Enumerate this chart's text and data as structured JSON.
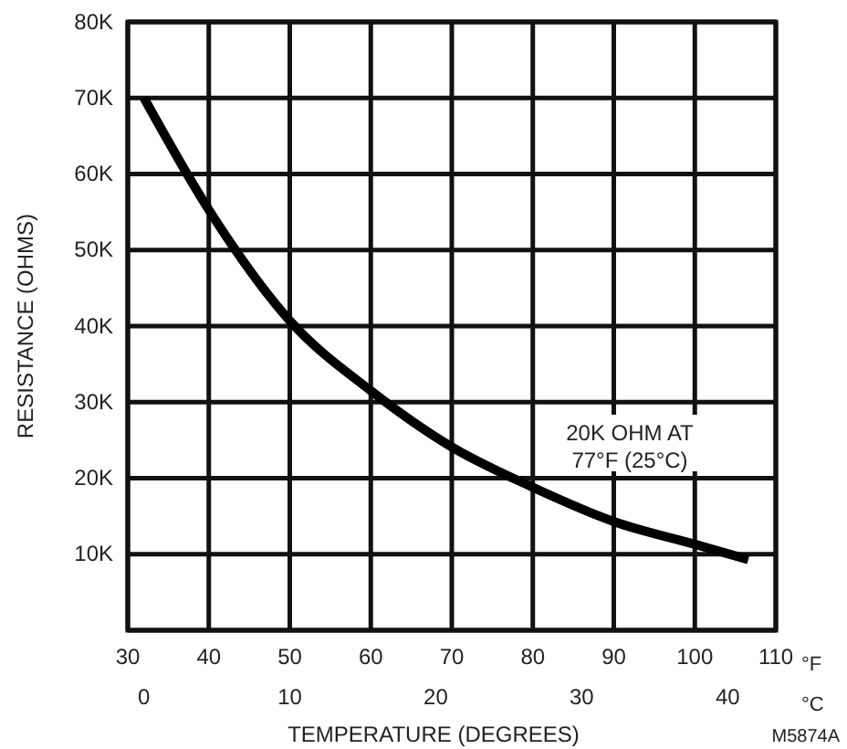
{
  "chart_data": {
    "type": "line",
    "xlabel": "TEMPERATURE (DEGREES)",
    "ylabel": "RESISTANCE (OHMS)",
    "x": [
      32,
      40,
      50,
      60,
      70,
      80,
      90,
      100,
      106.6
    ],
    "series": [
      {
        "color": "#000000",
        "values": [
          70000,
          55300,
          40700,
          31500,
          24100,
          18800,
          14300,
          11300,
          9300
        ]
      }
    ],
    "xlim": [
      30,
      110
    ],
    "xticks": [
      30,
      40,
      50,
      60,
      70,
      80,
      90,
      100,
      110
    ],
    "x2lim": [
      -1.1,
      43.3
    ],
    "x2ticks": [
      0,
      10,
      20,
      30,
      40
    ],
    "ylim": [
      0,
      80000
    ],
    "yticks": [
      {
        "value": 0,
        "label": null
      },
      {
        "value": 10000,
        "label": "10K"
      },
      {
        "value": 20000,
        "label": "20K"
      },
      {
        "value": 30000,
        "label": "30K"
      },
      {
        "value": 40000,
        "label": "40K"
      },
      {
        "value": 50000,
        "label": "50K"
      },
      {
        "value": 60000,
        "label": "60K"
      },
      {
        "value": 70000,
        "label": "70K"
      },
      {
        "value": 80000,
        "label": "80K"
      }
    ],
    "grid": true,
    "marker": "none",
    "line_style": "solid",
    "annotations": [
      "20K OHM AT 77°F (25°C)",
      "°F",
      "°C",
      "M5874A"
    ]
  }
}
